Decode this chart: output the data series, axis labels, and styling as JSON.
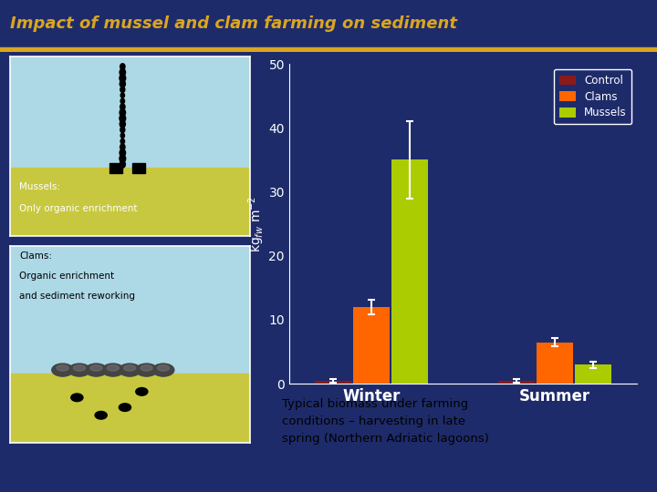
{
  "title": "Impact of mussel and clam farming on sediment",
  "title_color": "#DAA520",
  "bg_color": "#1E2B6A",
  "categories": [
    "Winter",
    "Summer"
  ],
  "series": {
    "Control": {
      "values": [
        0.5,
        0.5
      ],
      "errors": [
        0.3,
        0.3
      ],
      "color": "#8B1A1A"
    },
    "Clams": {
      "values": [
        12,
        6.5
      ],
      "errors": [
        1.2,
        0.6
      ],
      "color": "#FF6600"
    },
    "Mussels": {
      "values": [
        35,
        3
      ],
      "errors": [
        6.0,
        0.5
      ],
      "color": "#AACC00"
    }
  },
  "ylabel": "kg$_{fw}$ m$^{-2}$",
  "ylim": [
    0,
    50
  ],
  "yticks": [
    0,
    10,
    20,
    30,
    40,
    50
  ],
  "water_color": "#ADD8E6",
  "sediment_color": "#C8C840",
  "mussel_text1": "Mussels:",
  "mussel_text2": "Only organic enrichment",
  "clam_text1": "Clams:",
  "clam_text2": "Organic enrichment",
  "clam_text3": "and sediment reworking",
  "bottom_text": "Typical biomass under farming\nconditions – harvesting in late\nspring (Northern Adriatic lagoons)",
  "title_line_color": "#DAA520",
  "chart_inner_bg": "#1E2B6A"
}
